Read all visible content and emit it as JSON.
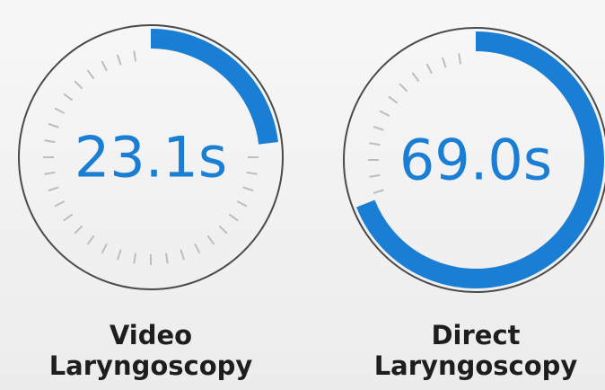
{
  "chart_data": {
    "type": "gauge",
    "categories": [
      "Video Laryngoscopy",
      "Direct Laryngoscopy"
    ],
    "values": [
      23.1,
      69.0
    ],
    "value_labels": [
      "23.1s",
      "69.0s"
    ],
    "ylim": [
      0,
      100
    ],
    "color": "#1a7fd4"
  }
}
